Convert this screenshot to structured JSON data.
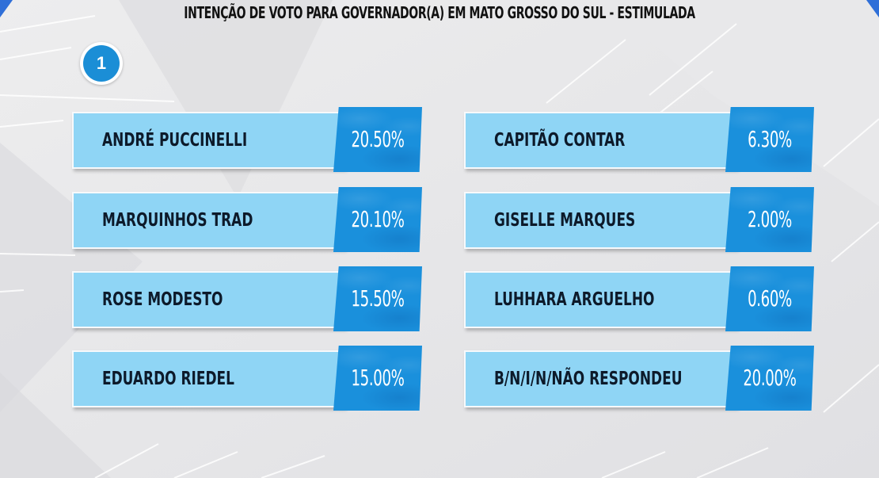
{
  "title": "INTENÇÃO DE VOTO PARA GOVERNADOR(A) EM MATO GROSSO DO SUL - ESTIMULADA",
  "badge": "1",
  "colors": {
    "background": "#e6e6e8",
    "name_box": "#8fd5f5",
    "value_box": "#1a90dc",
    "badge": "#1b8ed6",
    "accent_corner": "#2f6fd8"
  },
  "chart_data": {
    "type": "table",
    "title": "INTENÇÃO DE VOTO PARA GOVERNADOR(A) EM MATO GROSSO DO SUL - ESTIMULADA",
    "unit": "%",
    "rows": [
      {
        "label": "ANDRÉ PUCCINELLI",
        "value": 20.5,
        "display": "20.50%"
      },
      {
        "label": "MARQUINHOS TRAD",
        "value": 20.1,
        "display": "20.10%"
      },
      {
        "label": "ROSE MODESTO",
        "value": 15.5,
        "display": "15.50%"
      },
      {
        "label": "EDUARDO RIEDEL",
        "value": 15.0,
        "display": "15.00%"
      },
      {
        "label": "CAPITÃO CONTAR",
        "value": 6.3,
        "display": "6.30%"
      },
      {
        "label": "GISELLE MARQUES",
        "value": 2.0,
        "display": "2.00%"
      },
      {
        "label": "LUHHARA ARGUELHO",
        "value": 0.6,
        "display": "0.60%"
      },
      {
        "label": "B/N/I/N/NÃO RESPONDEU",
        "value": 20.0,
        "display": "20.00%"
      }
    ]
  }
}
